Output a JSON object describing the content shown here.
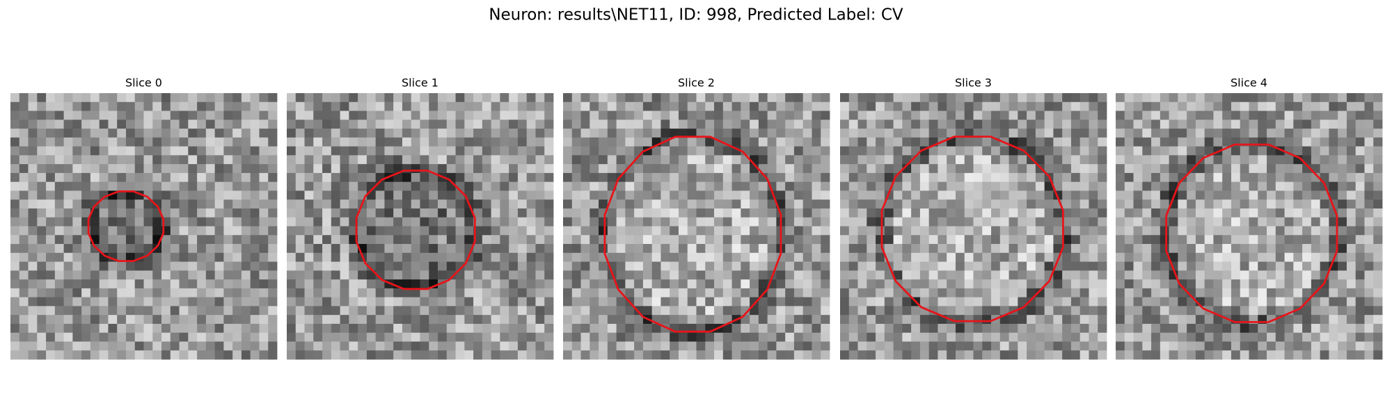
{
  "title": "Neuron: results\\NET11, ID: 998, Predicted Label: CV",
  "panels": [
    {
      "title": "Slice 0"
    },
    {
      "title": "Slice 1"
    },
    {
      "title": "Slice 2"
    },
    {
      "title": "Slice 3"
    },
    {
      "title": "Slice 4"
    }
  ]
}
